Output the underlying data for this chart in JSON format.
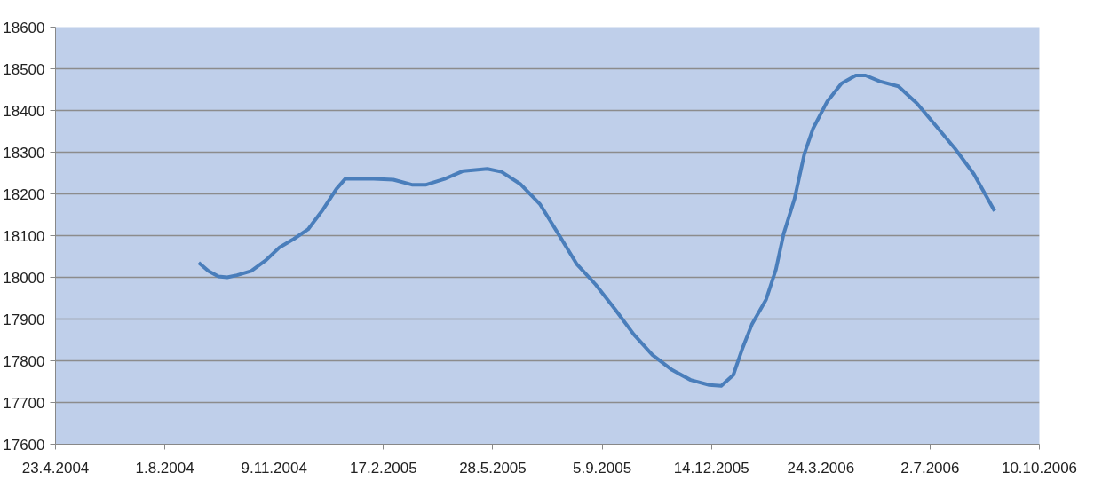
{
  "chart_data": {
    "type": "line",
    "x": [
      "2004-09-01",
      "2004-09-10",
      "2004-09-19",
      "2004-09-27",
      "2004-10-06",
      "2004-10-19",
      "2004-11-01",
      "2004-11-14",
      "2004-11-27",
      "2004-12-10",
      "2004-12-23",
      "2005-01-05",
      "2005-01-13",
      "2005-01-22",
      "2005-02-08",
      "2005-02-26",
      "2005-03-15",
      "2005-03-28",
      "2005-04-14",
      "2005-05-01",
      "2005-05-23",
      "2005-06-05",
      "2005-06-22",
      "2005-07-10",
      "2005-07-27",
      "2005-08-13",
      "2005-08-30",
      "2005-09-17",
      "2005-10-04",
      "2005-10-21",
      "2005-11-08",
      "2005-11-25",
      "2005-12-12",
      "2005-12-23",
      "2006-01-03",
      "2006-01-11",
      "2006-01-20",
      "2006-02-02",
      "2006-02-11",
      "2006-02-18",
      "2006-02-28",
      "2006-03-09",
      "2006-03-17",
      "2006-03-30",
      "2006-04-12",
      "2006-04-25",
      "2006-05-04",
      "2006-05-17",
      "2006-06-03",
      "2006-06-20",
      "2006-07-08",
      "2006-07-25",
      "2006-08-11",
      "2006-08-30"
    ],
    "series": [
      {
        "color": "#4a7ebb",
        "values": [
          18035,
          18015,
          18002,
          18000,
          18005,
          18015,
          18040,
          18072,
          18092,
          18115,
          18160,
          18212,
          18236,
          18236,
          18236,
          18234,
          18222,
          18222,
          18236,
          18255,
          18260,
          18253,
          18224,
          18176,
          18104,
          18031,
          17983,
          17923,
          17863,
          17814,
          17778,
          17754,
          17742,
          17740,
          17766,
          17827,
          17887,
          17947,
          18019,
          18104,
          18188,
          18296,
          18357,
          18422,
          18465,
          18484,
          18484,
          18470,
          18458,
          18417,
          18361,
          18308,
          18248,
          18159
        ]
      }
    ],
    "xlim": [
      "2004-04-23",
      "2006-10-10"
    ],
    "xticks": [
      {
        "value": "2004-04-23",
        "label": "23.4.2004"
      },
      {
        "value": "2004-08-01",
        "label": "1.8.2004"
      },
      {
        "value": "2004-11-09",
        "label": "9.11.2004"
      },
      {
        "value": "2005-02-17",
        "label": "17.2.2005"
      },
      {
        "value": "2005-05-28",
        "label": "28.5.2005"
      },
      {
        "value": "2005-09-05",
        "label": "5.9.2005"
      },
      {
        "value": "2005-12-14",
        "label": "14.12.2005"
      },
      {
        "value": "2006-03-24",
        "label": "24.3.2006"
      },
      {
        "value": "2006-07-02",
        "label": "2.7.2006"
      },
      {
        "value": "2006-10-10",
        "label": "10.10.2006"
      }
    ],
    "ylim": [
      17600,
      18600
    ],
    "yticks": [
      17600,
      17700,
      17800,
      17900,
      18000,
      18100,
      18200,
      18300,
      18400,
      18500,
      18600
    ],
    "grid": "y",
    "marker": "none",
    "line_style": "solid"
  }
}
